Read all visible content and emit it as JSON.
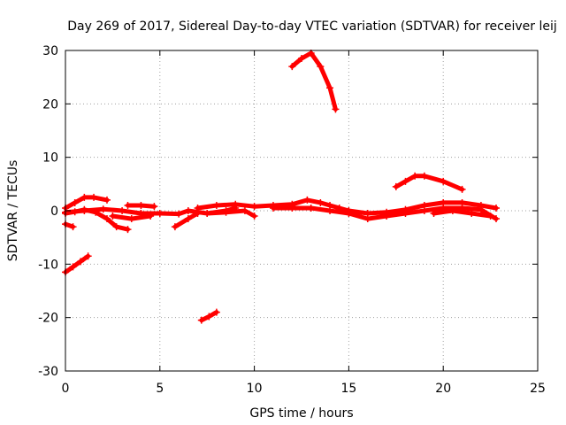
{
  "chart_data": {
    "type": "scatter",
    "title": "Day 269 of 2017, Sidereal Day-to-day VTEC variation (SDTVAR) for receiver leij",
    "xlabel": "GPS time / hours",
    "ylabel": "SDTVAR / TECUs",
    "xlim": [
      0,
      25
    ],
    "ylim": [
      -30,
      30
    ],
    "x_ticks": [
      0,
      5,
      10,
      15,
      20,
      25
    ],
    "y_ticks": [
      -30,
      -20,
      -10,
      0,
      10,
      20,
      30
    ],
    "x_tick_labels": [
      "0",
      "5",
      "10",
      "15",
      "20",
      "25"
    ],
    "y_tick_labels": [
      "-30",
      "-20",
      "-10",
      "0",
      "10",
      "20",
      "30"
    ],
    "grid": true,
    "legend": "none",
    "color": "#ff0000",
    "series": [
      {
        "points": [
          [
            0.0,
            -11.5
          ],
          [
            0.4,
            -10.5
          ],
          [
            0.8,
            -9.5
          ],
          [
            1.2,
            -8.5
          ]
        ]
      },
      {
        "points": [
          [
            0.0,
            -2.5
          ],
          [
            0.4,
            -3.0
          ]
        ]
      },
      {
        "points": [
          [
            0.0,
            0.5
          ],
          [
            0.5,
            1.5
          ],
          [
            1.0,
            2.5
          ],
          [
            1.5,
            2.5
          ],
          [
            2.2,
            2.0
          ]
        ]
      },
      {
        "points": [
          [
            0.0,
            -0.5
          ],
          [
            0.5,
            -0.2
          ],
          [
            1.0,
            0.2
          ],
          [
            1.6,
            -0.3
          ],
          [
            2.2,
            -1.5
          ],
          [
            2.7,
            -3.0
          ],
          [
            3.3,
            -3.5
          ]
        ]
      },
      {
        "points": [
          [
            0.0,
            -0.3
          ],
          [
            1.0,
            0.0
          ],
          [
            2.0,
            0.3
          ],
          [
            3.0,
            0.0
          ],
          [
            4.0,
            -0.5
          ],
          [
            5.0,
            -0.5
          ],
          [
            6.0,
            -0.6
          ],
          [
            6.5,
            0.0
          ],
          [
            7.5,
            -0.5
          ],
          [
            8.5,
            0.0
          ],
          [
            9.0,
            0.5
          ]
        ]
      },
      {
        "points": [
          [
            3.3,
            1.0
          ],
          [
            4.0,
            1.0
          ],
          [
            4.7,
            0.8
          ]
        ]
      },
      {
        "points": [
          [
            2.5,
            -1.0
          ],
          [
            3.5,
            -1.5
          ],
          [
            4.5,
            -1.0
          ]
        ]
      },
      {
        "points": [
          [
            5.8,
            -3.0
          ],
          [
            6.5,
            -1.5
          ],
          [
            7.0,
            -0.5
          ]
        ]
      },
      {
        "points": [
          [
            7.0,
            0.5
          ],
          [
            8.0,
            1.0
          ],
          [
            9.0,
            1.2
          ],
          [
            10.0,
            0.8
          ],
          [
            11.0,
            1.0
          ],
          [
            12.0,
            1.2
          ],
          [
            12.8,
            2.0
          ],
          [
            13.5,
            1.5
          ],
          [
            14.0,
            1.0
          ],
          [
            14.5,
            0.5
          ],
          [
            15.0,
            0.0
          ],
          [
            16.0,
            -0.5
          ],
          [
            17.0,
            -0.3
          ],
          [
            18.0,
            0.2
          ],
          [
            19.0,
            1.0
          ],
          [
            20.0,
            1.5
          ],
          [
            21.0,
            1.5
          ],
          [
            22.0,
            1.0
          ],
          [
            22.8,
            0.5
          ]
        ]
      },
      {
        "points": [
          [
            7.5,
            -0.5
          ],
          [
            8.5,
            -0.3
          ],
          [
            9.5,
            0.0
          ],
          [
            10.0,
            -1.0
          ]
        ]
      },
      {
        "points": [
          [
            11.0,
            0.5
          ],
          [
            12.0,
            0.5
          ],
          [
            13.0,
            0.5
          ],
          [
            14.0,
            0.0
          ],
          [
            15.0,
            -0.5
          ],
          [
            16.0,
            -1.5
          ],
          [
            17.0,
            -1.0
          ],
          [
            18.0,
            -0.5
          ],
          [
            19.0,
            0.0
          ],
          [
            20.0,
            0.5
          ],
          [
            21.0,
            0.5
          ],
          [
            22.0,
            0.2
          ],
          [
            22.8,
            -1.5
          ]
        ]
      },
      {
        "points": [
          [
            12.0,
            27.0
          ],
          [
            12.5,
            28.5
          ],
          [
            13.0,
            29.5
          ],
          [
            13.5,
            27.0
          ],
          [
            14.0,
            23.0
          ],
          [
            14.3,
            19.0
          ]
        ]
      },
      {
        "points": [
          [
            17.5,
            4.5
          ],
          [
            18.0,
            5.5
          ],
          [
            18.5,
            6.5
          ],
          [
            19.0,
            6.5
          ],
          [
            20.0,
            5.5
          ],
          [
            21.0,
            4.0
          ]
        ]
      },
      {
        "points": [
          [
            19.5,
            -0.5
          ],
          [
            20.5,
            0.0
          ],
          [
            21.5,
            -0.5
          ],
          [
            22.5,
            -1.0
          ]
        ]
      },
      {
        "points": [
          [
            7.2,
            -20.5
          ],
          [
            7.6,
            -19.8
          ],
          [
            8.0,
            -19.0
          ]
        ]
      }
    ]
  }
}
